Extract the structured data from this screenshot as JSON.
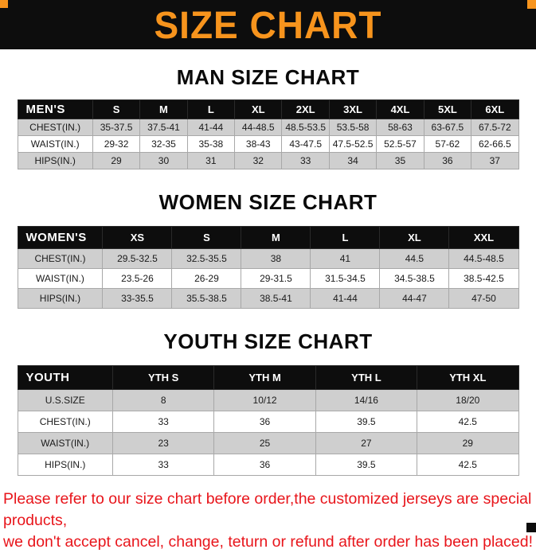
{
  "banner": {
    "title": "SIZE CHART"
  },
  "sections": [
    {
      "heading": "MAN SIZE CHART",
      "table": {
        "header": [
          "MEN'S",
          "S",
          "M",
          "L",
          "XL",
          "2XL",
          "3XL",
          "4XL",
          "5XL",
          "6XL"
        ],
        "rows": [
          {
            "label": "CHEST(IN.)",
            "values": [
              "35-37.5",
              "37.5-41",
              "41-44",
              "44-48.5",
              "48.5-53.5",
              "53.5-58",
              "58-63",
              "63-67.5",
              "67.5-72"
            ]
          },
          {
            "label": "WAIST(IN.)",
            "values": [
              "29-32",
              "32-35",
              "35-38",
              "38-43",
              "43-47.5",
              "47.5-52.5",
              "52.5-57",
              "57-62",
              "62-66.5"
            ]
          },
          {
            "label": "HIPS(IN.)",
            "values": [
              "29",
              "30",
              "31",
              "32",
              "33",
              "34",
              "35",
              "36",
              "37"
            ]
          }
        ]
      }
    },
    {
      "heading": "WOMEN SIZE CHART",
      "table": {
        "header": [
          "WOMEN'S",
          "XS",
          "S",
          "M",
          "L",
          "XL",
          "XXL"
        ],
        "rows": [
          {
            "label": "CHEST(IN.)",
            "values": [
              "29.5-32.5",
              "32.5-35.5",
              "38",
              "41",
              "44.5",
              "44.5-48.5"
            ]
          },
          {
            "label": "WAIST(IN.)",
            "values": [
              "23.5-26",
              "26-29",
              "29-31.5",
              "31.5-34.5",
              "34.5-38.5",
              "38.5-42.5"
            ]
          },
          {
            "label": "HIPS(IN.)",
            "values": [
              "33-35.5",
              "35.5-38.5",
              "38.5-41",
              "41-44",
              "44-47",
              "47-50"
            ]
          }
        ]
      }
    },
    {
      "heading": "YOUTH SIZE CHART",
      "table": {
        "header": [
          "YOUTH",
          "YTH S",
          "YTH M",
          "YTH L",
          "YTH XL"
        ],
        "rows": [
          {
            "label": "U.S.SIZE",
            "values": [
              "8",
              "10/12",
              "14/16",
              "18/20"
            ]
          },
          {
            "label": "CHEST(IN.)",
            "values": [
              "33",
              "36",
              "39.5",
              "42.5"
            ]
          },
          {
            "label": "WAIST(IN.)",
            "values": [
              "23",
              "25",
              "27",
              "29"
            ]
          },
          {
            "label": "HIPS(IN.)",
            "values": [
              "33",
              "36",
              "39.5",
              "42.5"
            ]
          }
        ]
      }
    }
  ],
  "footer": {
    "line1": "Please refer to our size chart before order,the customized jerseys are special products,",
    "line2": "we don't accept cancel, change, teturn or refund after order has been placed!"
  },
  "colors": {
    "accent_orange": "#F7941D",
    "banner_black": "#0d0d0d",
    "stripe_gray": "#cfcfcf",
    "footer_red": "#e8151b"
  }
}
